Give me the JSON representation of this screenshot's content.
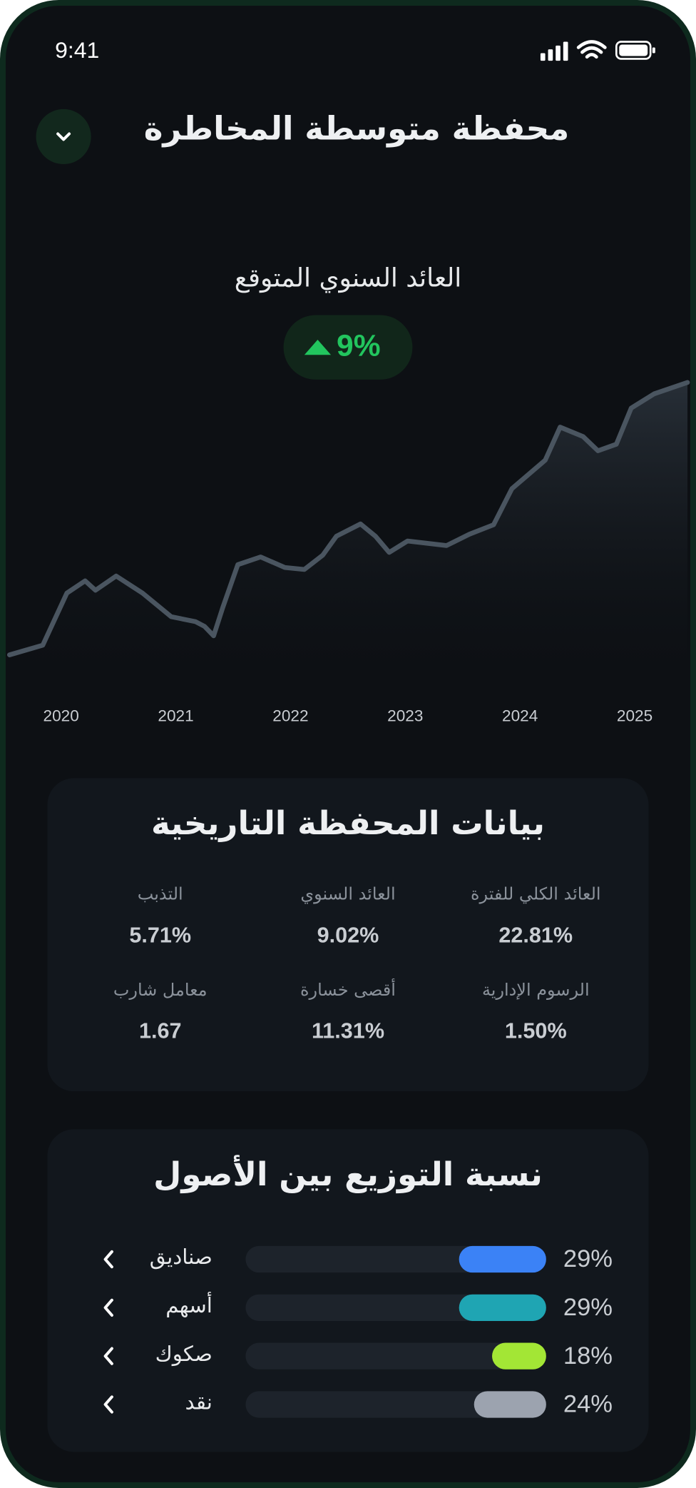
{
  "status_bar": {
    "time": "9:41"
  },
  "header": {
    "title": "محفظة متوسطة المخاطرة"
  },
  "expected_return": {
    "label": "العائد السنوي المتوقع",
    "value": "9%"
  },
  "chart_data": {
    "type": "line",
    "x": [
      2019.55,
      2019.84,
      2020.05,
      2020.21,
      2020.3,
      2020.48,
      2020.71,
      2020.96,
      2021.17,
      2021.25,
      2021.33,
      2021.41,
      2021.54,
      2021.74,
      2021.95,
      2022.12,
      2022.28,
      2022.4,
      2022.61,
      2022.74,
      2022.86,
      2023.02,
      2023.36,
      2023.56,
      2023.77,
      2023.93,
      2024.22,
      2024.35,
      2024.55,
      2024.68,
      2024.84,
      2024.97,
      2025.17,
      2025.46
    ],
    "values": [
      3.3,
      6.7,
      25,
      29.3,
      26,
      31,
      25,
      16.7,
      15,
      13.3,
      10,
      20,
      35,
      37.7,
      34,
      33.3,
      38.3,
      45,
      49.3,
      45,
      39.3,
      43.3,
      41.7,
      45.7,
      49,
      61.7,
      71.7,
      83.3,
      80,
      75,
      77.3,
      90,
      95,
      99
    ],
    "color": "#4a5560",
    "xlim": [
      2019.55,
      2025.46
    ],
    "xticks": [
      2020,
      2021,
      2022,
      2023,
      2024,
      2025
    ],
    "ylim": [
      0,
      100
    ]
  },
  "historical": {
    "title": "بيانات المحفظة التاريخية",
    "stats": [
      {
        "label": "العائد الكلي للفترة",
        "value": "22.81%"
      },
      {
        "label": "العائد السنوي",
        "value": "9.02%"
      },
      {
        "label": "التذبب",
        "value": "5.71%"
      },
      {
        "label": "الرسوم الإدارية",
        "value": "1.50%"
      },
      {
        "label": "أقصى خسارة",
        "value": "11.31%"
      },
      {
        "label": "معامل شارب",
        "value": "1.67"
      }
    ]
  },
  "allocation": {
    "title": "نسبة التوزيع بين الأصول",
    "items": [
      {
        "name": "صناديق",
        "value": 29,
        "label": "29%",
        "color": "#3b82f6"
      },
      {
        "name": "أسهم",
        "value": 29,
        "label": "29%",
        "color": "#1fa5b3"
      },
      {
        "name": "صكوك",
        "value": 18,
        "label": "18%",
        "color": "#a3e635"
      },
      {
        "name": "نقد",
        "value": 24,
        "label": "24%",
        "color": "#9ca3af"
      }
    ]
  }
}
